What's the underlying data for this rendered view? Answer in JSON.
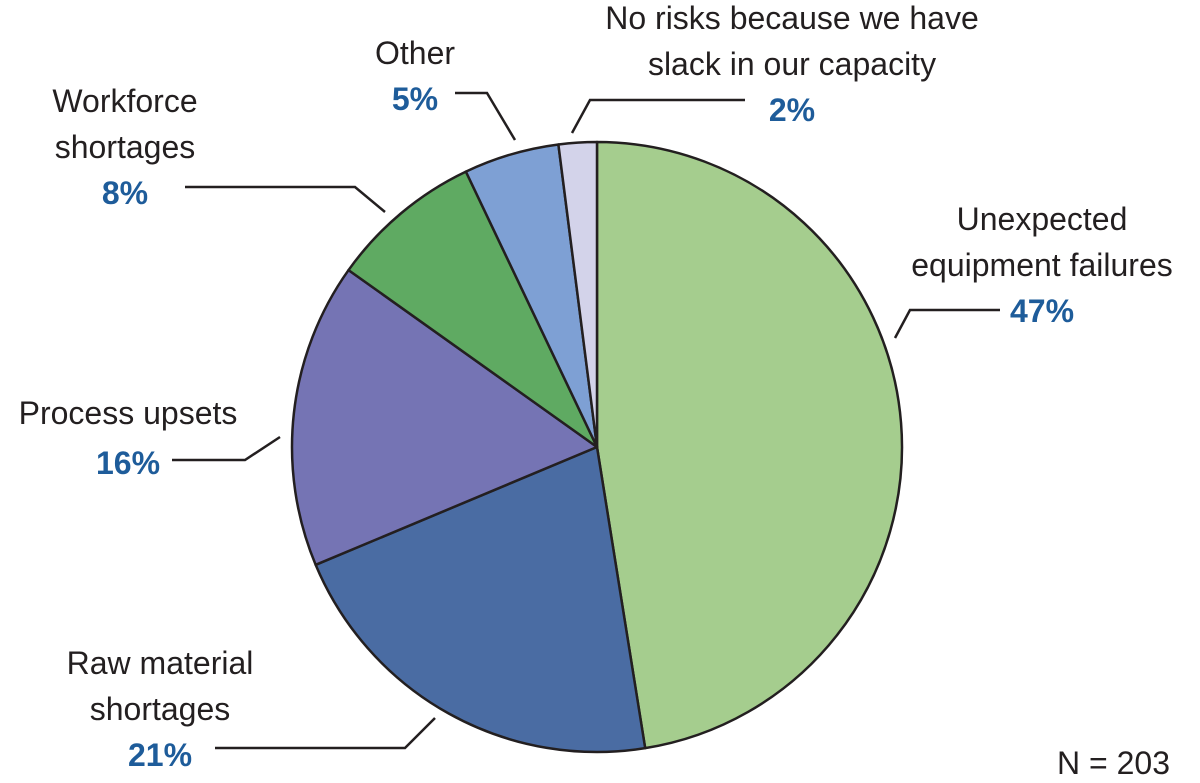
{
  "chart_data": {
    "type": "pie",
    "categories": [
      "Unexpected equipment failures",
      "Raw material shortages",
      "Process upsets",
      "Workforce shortages",
      "Other",
      "No risks because we have slack in our capacity"
    ],
    "values": [
      47,
      21,
      16,
      8,
      5,
      2
    ],
    "value_labels": [
      "47%",
      "21%",
      "16%",
      "8%",
      "5%",
      "2%"
    ],
    "colors": [
      "#a5cd8e",
      "#4a6ca3",
      "#7574b4",
      "#5faa62",
      "#7ea0d4",
      "#d3d3ea"
    ],
    "note": "N = 203"
  }
}
